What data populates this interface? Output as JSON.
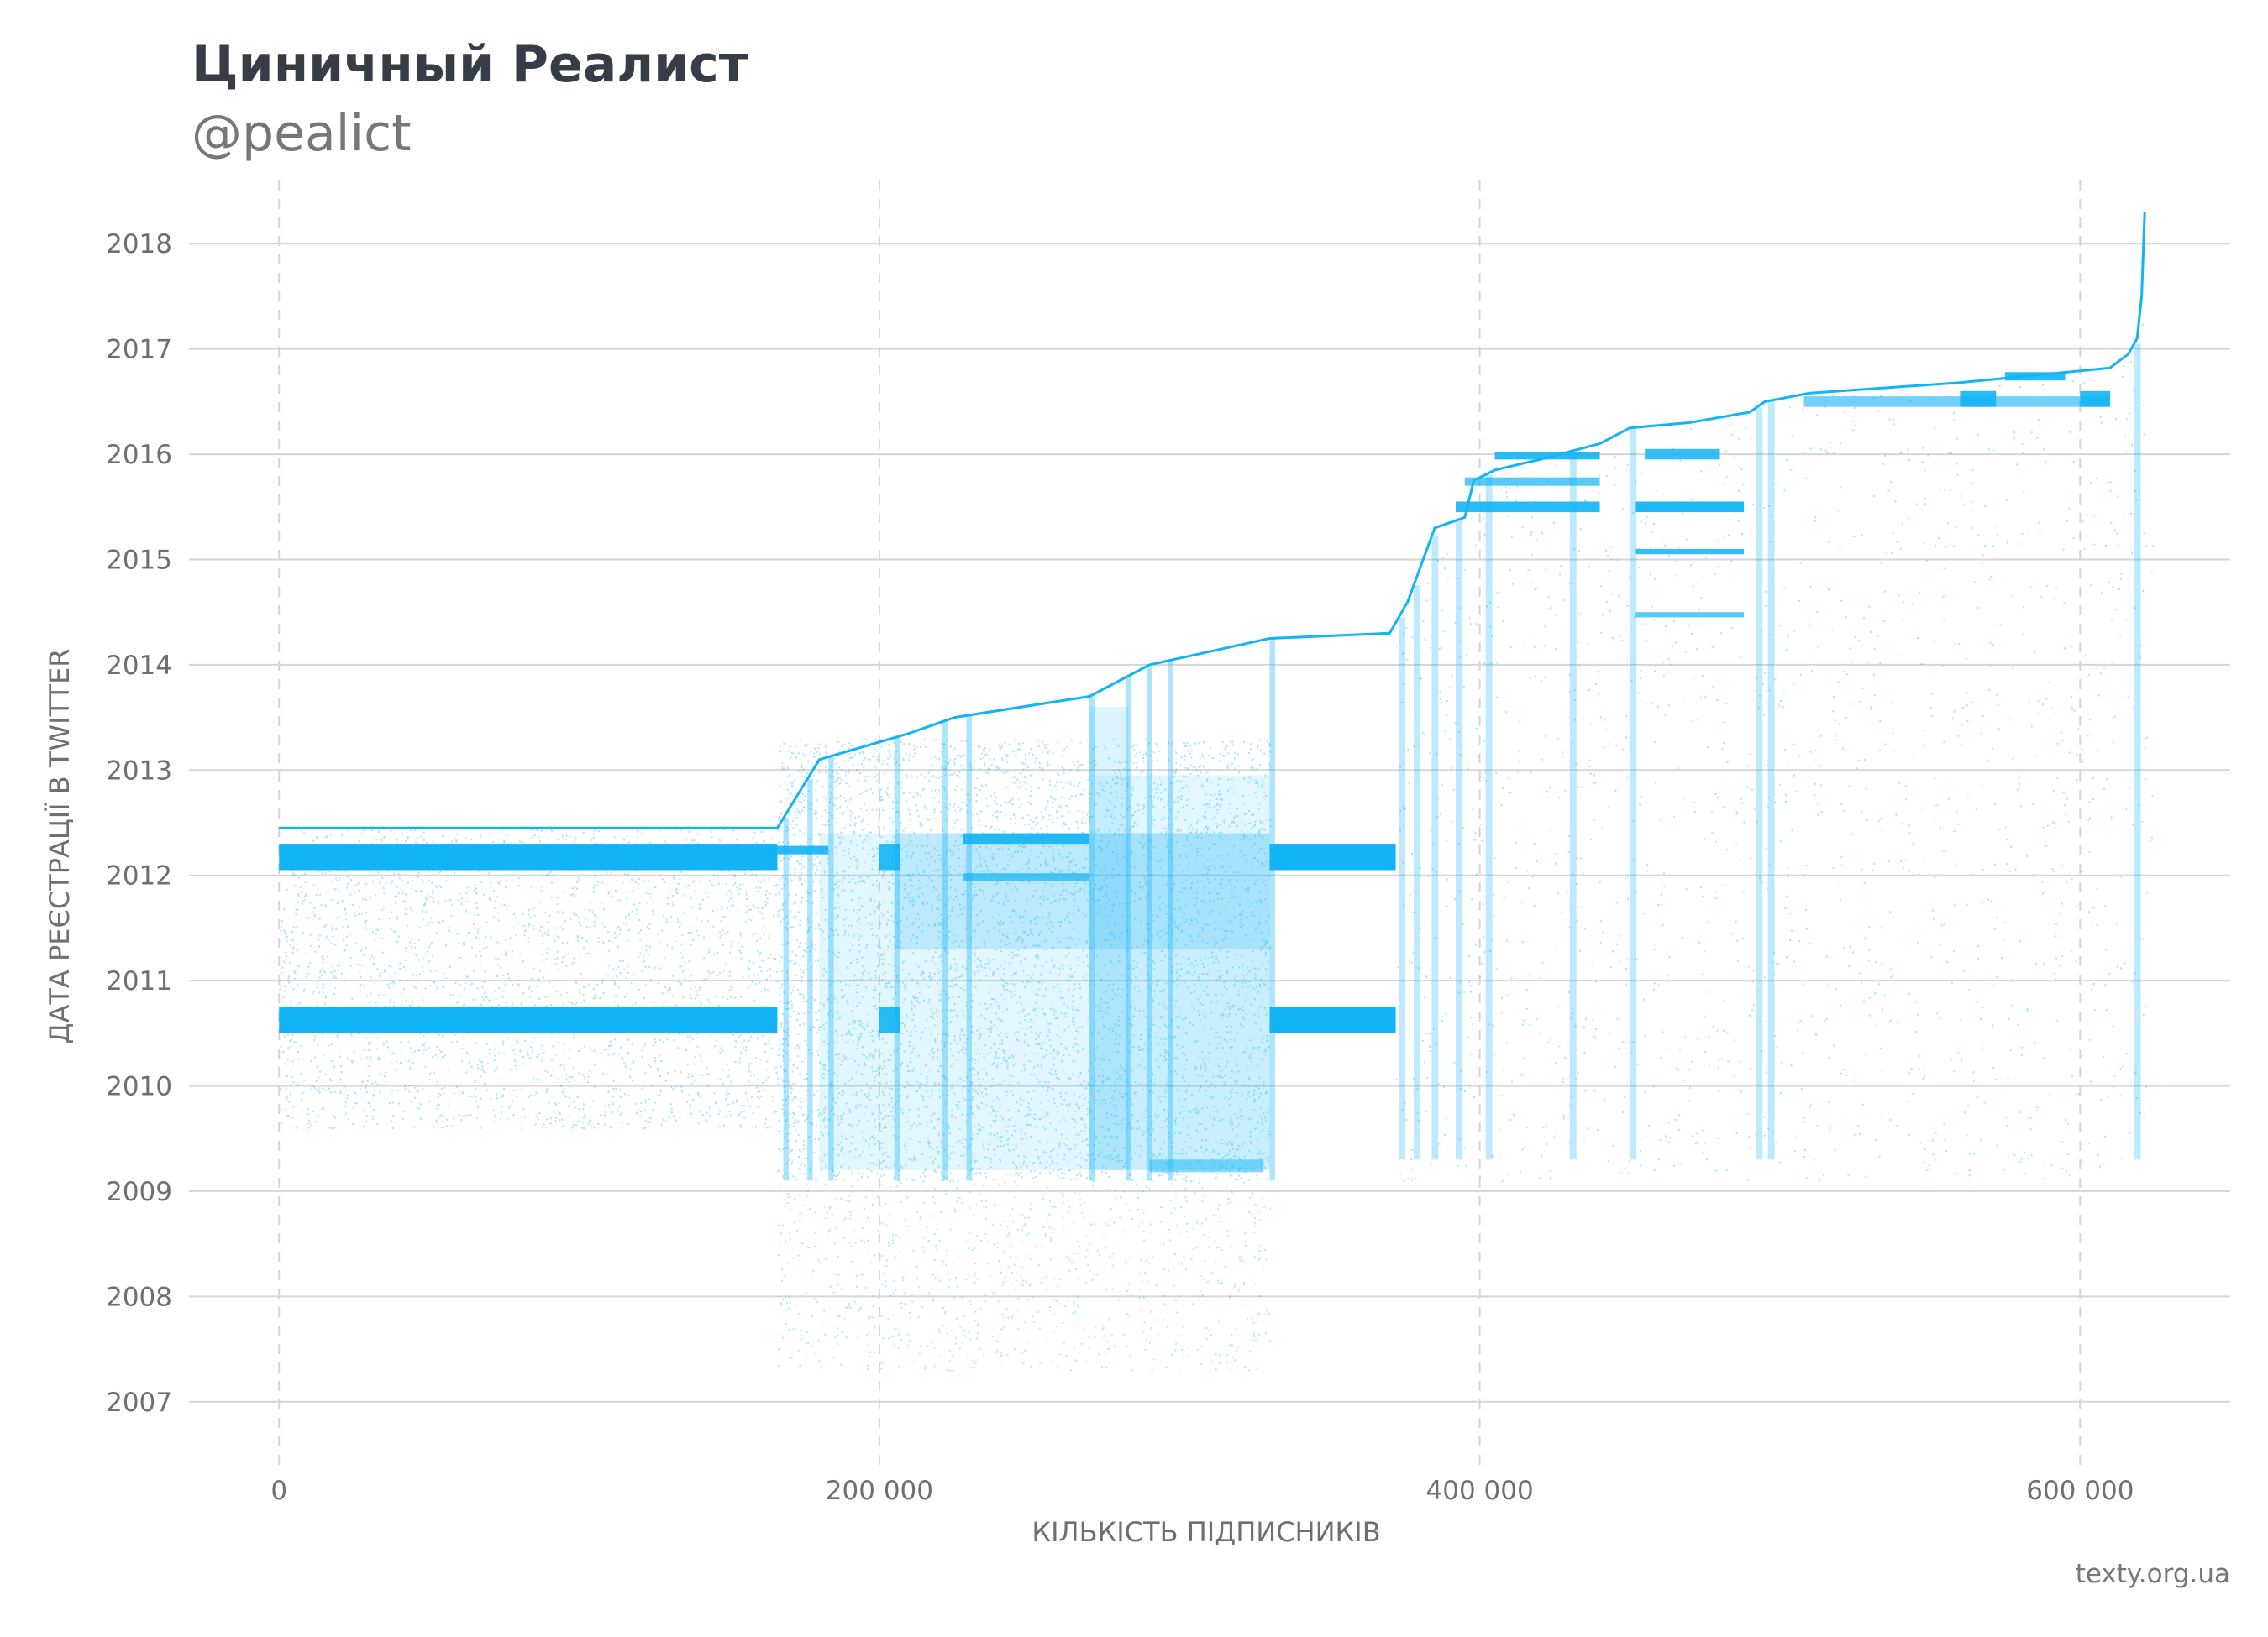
{
  "header": {
    "title": "Циничный Реалист",
    "subtitle": "@pealict"
  },
  "footer": {
    "source": "texty.org.ua"
  },
  "chart_data": {
    "type": "scatter",
    "title": "Циничный Реалист",
    "subtitle": "@pealict",
    "xlabel": "КІЛЬКІСТЬ ПІДПИСНИКІВ",
    "ylabel": "ДАТА РЕЄСТРАЦІЇ В TWITTER",
    "xlim": [
      -30000,
      650000
    ],
    "ylim": [
      2006.4,
      2018.6
    ],
    "x_ticks": [
      0,
      200000,
      400000,
      600000
    ],
    "x_tick_labels": [
      "0",
      "200 000",
      "400 000",
      "600 000"
    ],
    "y_ticks": [
      2007,
      2008,
      2009,
      2010,
      2011,
      2012,
      2013,
      2014,
      2015,
      2016,
      2017,
      2018
    ],
    "y_tick_labels": [
      "2007",
      "2008",
      "2009",
      "2010",
      "2011",
      "2012",
      "2013",
      "2014",
      "2015",
      "2016",
      "2017",
      "2018"
    ],
    "grid": {
      "horizontal": "solid",
      "vertical": "dashed"
    },
    "point_color": "#12b4f5",
    "series": [
      {
        "name": "",
        "description_of_density": [
          {
            "x_range": [
              0,
              166000
            ],
            "y_range": [
              2012.05,
              2012.3
            ],
            "density": "solid"
          },
          {
            "x_range": [
              0,
              166000
            ],
            "y_range": [
              2010.5,
              2010.75
            ],
            "density": "solid"
          },
          {
            "x_range": [
              0,
              166000
            ],
            "y_range": [
              2009.5,
              2012.45
            ],
            "density": "sparse"
          },
          {
            "x_range": [
              166000,
              330000
            ],
            "y_range": [
              2009.1,
              2013.2
            ],
            "density": "dense"
          },
          {
            "x_range": [
              166000,
              330000
            ],
            "y_range": [
              2007.3,
              2009.1
            ],
            "density": "sparse"
          },
          {
            "x_range": [
              330000,
              372000
            ],
            "y_range": [
              2012.05,
              2012.3
            ],
            "density": "solid"
          },
          {
            "x_range": [
              330000,
              372000
            ],
            "y_range": [
              2010.5,
              2010.75
            ],
            "density": "solid"
          },
          {
            "x_range": [
              372000,
              620000
            ],
            "y_range": [
              2009,
              2016.8
            ],
            "density": "sparse"
          }
        ],
        "upper_edge": [
          [
            0,
            2012.45
          ],
          [
            166000,
            2012.45
          ],
          [
            180000,
            2013.1
          ],
          [
            210000,
            2013.35
          ],
          [
            225000,
            2013.5
          ],
          [
            270000,
            2013.7
          ],
          [
            290000,
            2014.0
          ],
          [
            330000,
            2014.25
          ],
          [
            370000,
            2014.3
          ],
          [
            376000,
            2014.6
          ],
          [
            385000,
            2015.3
          ],
          [
            395000,
            2015.4
          ],
          [
            398000,
            2015.75
          ],
          [
            405000,
            2015.85
          ],
          [
            420000,
            2015.95
          ],
          [
            440000,
            2016.1
          ],
          [
            450000,
            2016.25
          ],
          [
            470000,
            2016.3
          ],
          [
            490000,
            2016.4
          ],
          [
            495000,
            2016.5
          ],
          [
            510000,
            2016.58
          ],
          [
            560000,
            2016.68
          ],
          [
            610000,
            2016.82
          ],
          [
            616000,
            2016.95
          ],
          [
            619000,
            2017.1
          ],
          [
            620500,
            2017.5
          ],
          [
            621500,
            2018.3
          ]
        ]
      }
    ]
  }
}
